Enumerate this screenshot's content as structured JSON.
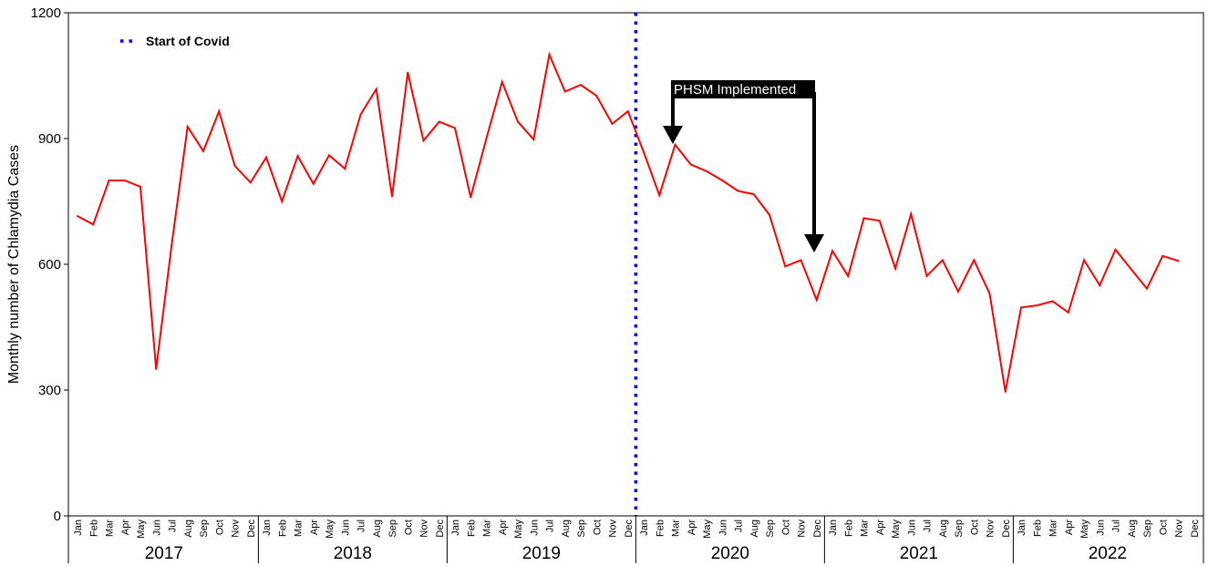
{
  "chart_data": {
    "type": "line",
    "ylabel": "Monthly number of Chlamydia Cases",
    "ylim": [
      0,
      1200
    ],
    "yticks": [
      0,
      300,
      600,
      900,
      1200
    ],
    "months": [
      "Jan",
      "Feb",
      "Mar",
      "Apr",
      "May",
      "Jun",
      "Jul",
      "Aug",
      "Sep",
      "Oct",
      "Nov",
      "Dec"
    ],
    "years": [
      "2017",
      "2018",
      "2019",
      "2020",
      "2021",
      "2022"
    ],
    "series": [
      {
        "color": "#ff0000",
        "values": [
          715,
          695,
          800,
          800,
          785,
          350,
          650,
          928,
          870,
          965,
          835,
          795,
          855,
          750,
          858,
          792,
          860,
          828,
          957,
          1018,
          762,
          1057,
          895,
          940,
          925,
          760,
          900,
          1035,
          940,
          898,
          1100,
          1012,
          1028,
          1002,
          935,
          965,
          868,
          765,
          885,
          838,
          822,
          800,
          775,
          767,
          718,
          595,
          610,
          515,
          632,
          572,
          710,
          704,
          590,
          720,
          572,
          610,
          535,
          610,
          530,
          296,
          497,
          502,
          512,
          485,
          610,
          550,
          635,
          588,
          542,
          620,
          608
        ]
      }
    ],
    "reference_line": {
      "label": "Start of Covid",
      "position": "between Dec 2019 and Jan 2020",
      "color": "#0000ff",
      "style": "dotted"
    },
    "annotations": [
      {
        "text": "PHSM Implemented",
        "arrows_to": [
          "Mar 2020",
          "Dec 2020"
        ]
      }
    ],
    "legend_position": "top-left",
    "grid": false
  }
}
